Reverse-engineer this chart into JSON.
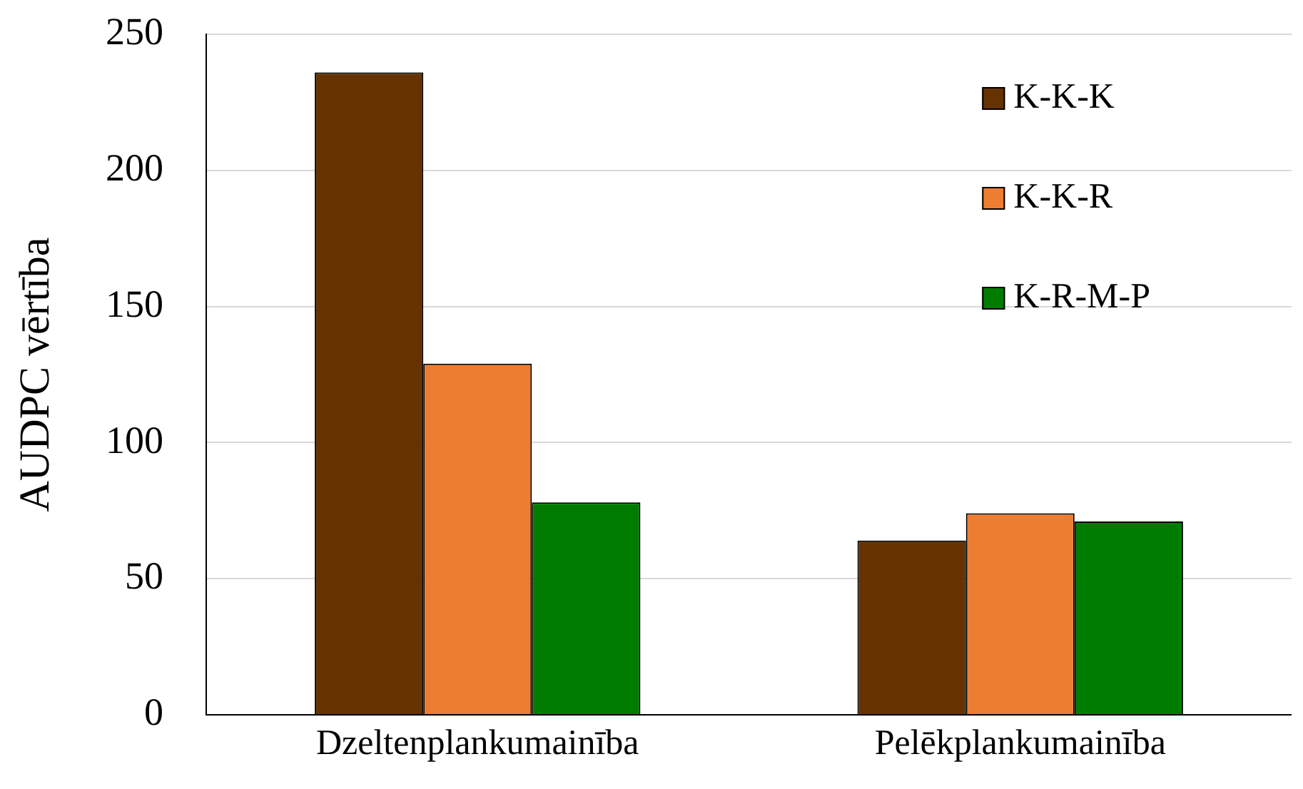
{
  "chart_data": {
    "type": "bar",
    "ylabel": "AUDPC vērtība",
    "categories": [
      "Dzeltenplankumainība",
      "Pelēkplankumainība"
    ],
    "series": [
      {
        "name": "K-K-K",
        "color": "#663300",
        "values": [
          236,
          64
        ]
      },
      {
        "name": "K-K-R",
        "color": "#ed7d31",
        "values": [
          129,
          74
        ]
      },
      {
        "name": "K-R-M-P",
        "color": "#007d00",
        "values": [
          78,
          71
        ]
      }
    ],
    "ylim": [
      0,
      250
    ],
    "yticks": [
      0,
      50,
      100,
      150,
      200,
      250
    ],
    "grid": "y",
    "legend": "top right"
  }
}
